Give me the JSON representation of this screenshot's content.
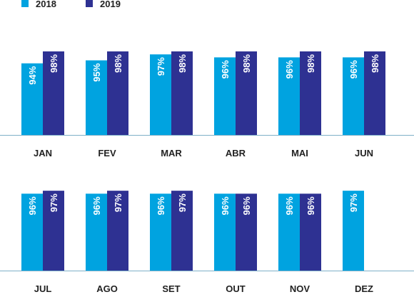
{
  "chart_data": {
    "type": "bar",
    "title": "",
    "xlabel": "",
    "ylabel": "",
    "unit": "%",
    "legend": "top-left",
    "grid": false,
    "ylim": [
      0,
      100
    ],
    "colors": {
      "2018": "#00a3e0",
      "2019": "#2e3192"
    },
    "series": [
      {
        "name": "2018",
        "color": "#00a3e0"
      },
      {
        "name": "2019",
        "color": "#2e3192"
      }
    ],
    "panels": [
      {
        "categories": [
          "JAN",
          "FEV",
          "MAR",
          "ABR",
          "MAI",
          "JUN"
        ],
        "values": {
          "2018": [
            94,
            95,
            97,
            96,
            96,
            96
          ],
          "2019": [
            98,
            98,
            98,
            98,
            98,
            98
          ]
        }
      },
      {
        "categories": [
          "JUL",
          "AGO",
          "SET",
          "OUT",
          "NOV",
          "DEZ"
        ],
        "values": {
          "2018": [
            96,
            96,
            96,
            96,
            96,
            97
          ],
          "2019": [
            97,
            97,
            97,
            96,
            96,
            null
          ]
        }
      }
    ]
  }
}
